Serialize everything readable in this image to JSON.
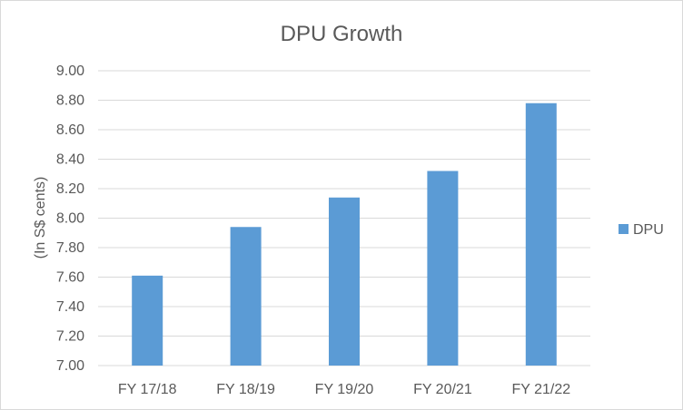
{
  "chart_data": {
    "type": "bar",
    "title": "DPU Growth",
    "xlabel": "",
    "ylabel": "(In S$ cents)",
    "categories": [
      "FY 17/18",
      "FY 18/19",
      "FY 19/20",
      "FY 20/21",
      "FY 21/22"
    ],
    "series": [
      {
        "name": "DPU",
        "values": [
          7.61,
          7.94,
          8.14,
          8.32,
          8.78
        ]
      }
    ],
    "ylim": [
      7.0,
      9.0
    ],
    "yticks": [
      "7.00",
      "7.20",
      "7.40",
      "7.60",
      "7.80",
      "8.00",
      "8.20",
      "8.40",
      "8.60",
      "8.80",
      "9.00"
    ],
    "ytick_values": [
      7.0,
      7.2,
      7.4,
      7.6,
      7.8,
      8.0,
      8.2,
      8.4,
      8.6,
      8.8,
      9.0
    ],
    "grid": true,
    "legend_position": "right",
    "bar_color": "#5b9bd5",
    "grid_color": "#d9d9d9",
    "text_color": "#595959"
  }
}
